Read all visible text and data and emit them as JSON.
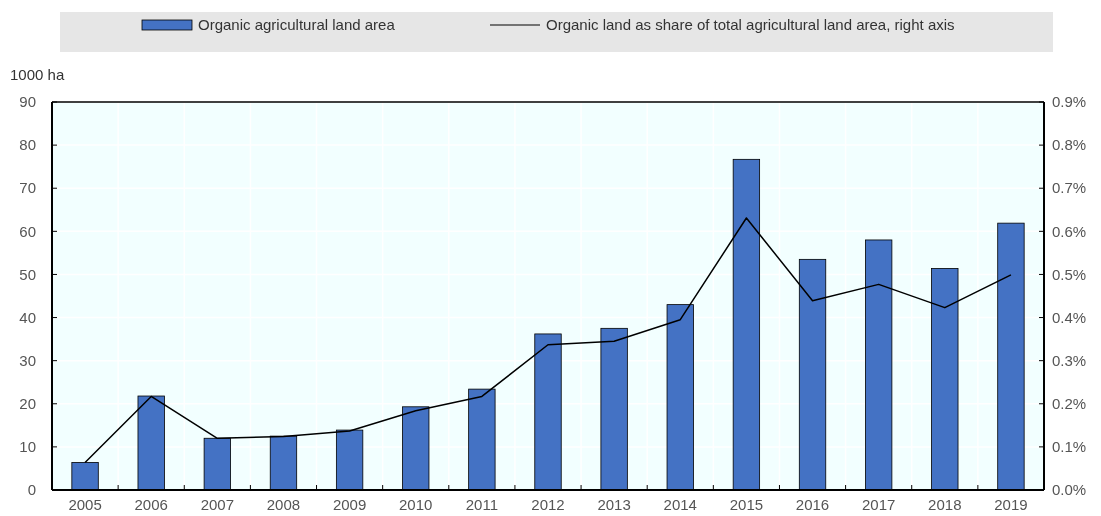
{
  "chart_data": {
    "type": "bar",
    "categories": [
      "2005",
      "2006",
      "2007",
      "2008",
      "2009",
      "2010",
      "2011",
      "2012",
      "2013",
      "2014",
      "2015",
      "2016",
      "2017",
      "2018",
      "2019"
    ],
    "series": [
      {
        "name": "Organic agricultural land area",
        "color": "#4472c4",
        "values": [
          6.4,
          21.8,
          12.0,
          12.5,
          13.9,
          19.3,
          23.4,
          36.2,
          37.5,
          43.0,
          76.7,
          53.5,
          58.0,
          51.4,
          61.9
        ]
      },
      {
        "name": "Organic land as share of total agricultural land area, right axis",
        "type": "line",
        "axis": "y2",
        "color": "#000000",
        "values": [
          0.064,
          0.217,
          0.12,
          0.124,
          0.137,
          0.184,
          0.217,
          0.337,
          0.345,
          0.395,
          0.631,
          0.439,
          0.477,
          0.423,
          0.499
        ]
      }
    ],
    "ylabel": "1000 ha",
    "ylim": [
      0,
      90
    ],
    "yticks": [
      0,
      10,
      20,
      30,
      40,
      50,
      60,
      70,
      80,
      90
    ],
    "y2lim": [
      0,
      0.9
    ],
    "y2ticks": [
      {
        "value": 0,
        "label": "0.0%"
      },
      {
        "value": 0.1,
        "label": "0.1%"
      },
      {
        "value": 0.2,
        "label": "0.2%"
      },
      {
        "value": 0.3,
        "label": "0.3%"
      },
      {
        "value": 0.4,
        "label": "0.4%"
      },
      {
        "value": 0.5,
        "label": "0.5%"
      },
      {
        "value": 0.6,
        "label": "0.6%"
      },
      {
        "value": 0.7,
        "label": "0.7%"
      },
      {
        "value": 0.8,
        "label": "0.8%"
      },
      {
        "value": 0.9,
        "label": "0.9%"
      }
    ],
    "grid": true,
    "legend": "top",
    "marker": "none",
    "line_style": "solid"
  }
}
